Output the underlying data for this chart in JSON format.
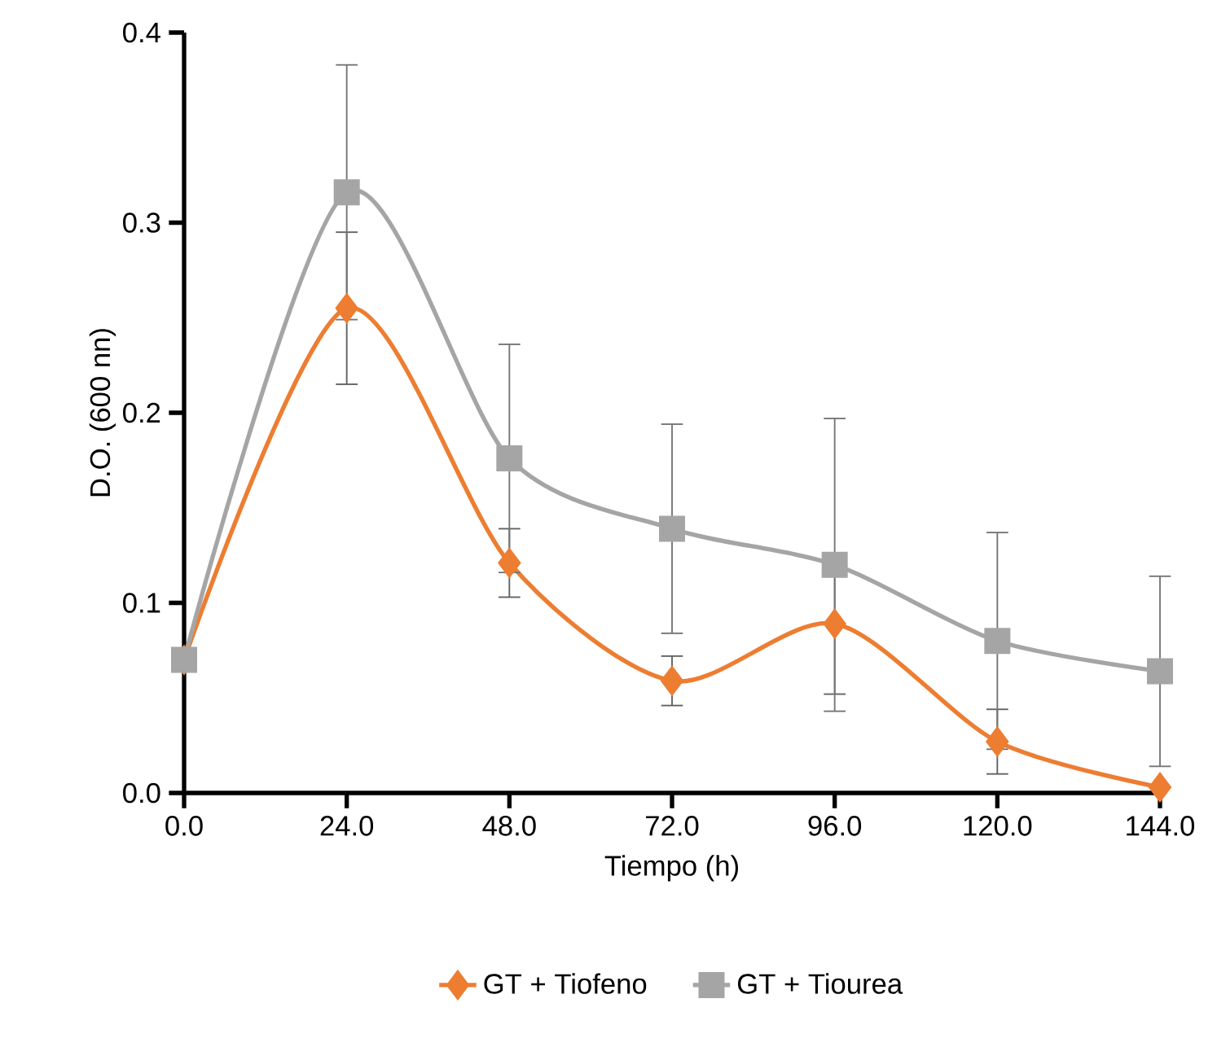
{
  "chart_data": {
    "type": "line",
    "xlabel": "Tiempo (h)",
    "ylabel": "D.O. (600 nn)",
    "x": [
      0,
      24,
      48,
      72,
      96,
      120,
      144
    ],
    "series": [
      {
        "name": "GT + Tiofeno",
        "color": "#ed7d31",
        "marker": "diamond",
        "values": [
          0.07,
          0.255,
          0.121,
          0.059,
          0.089,
          0.027,
          0.003
        ],
        "errors": [
          null,
          0.04,
          0.018,
          0.013,
          0.037,
          0.017,
          null
        ]
      },
      {
        "name": "GT + Tiourea",
        "color": "#a5a5a5",
        "marker": "square",
        "values": [
          0.07,
          0.316,
          0.176,
          0.139,
          0.12,
          0.08,
          0.064
        ],
        "errors": [
          null,
          0.067,
          0.06,
          0.055,
          0.077,
          0.057,
          0.05
        ]
      }
    ],
    "xlim": [
      0,
      144
    ],
    "ylim": [
      0,
      0.4
    ],
    "xticks": [
      {
        "value": 0,
        "label": "0.0"
      },
      {
        "value": 24,
        "label": "24.0"
      },
      {
        "value": 48,
        "label": "48.0"
      },
      {
        "value": 72,
        "label": "72.0"
      },
      {
        "value": 96,
        "label": "96.0"
      },
      {
        "value": 120,
        "label": "120.0"
      },
      {
        "value": 144,
        "label": "144.0"
      }
    ],
    "yticks": [
      {
        "value": 0,
        "label": "0.0"
      },
      {
        "value": 0.1,
        "label": "0.1"
      },
      {
        "value": 0.2,
        "label": "0.2"
      },
      {
        "value": 0.3,
        "label": "0.3"
      },
      {
        "value": 0.4,
        "label": "0.4"
      }
    ],
    "grid": false,
    "legend": "bottom",
    "line_style": "solid"
  }
}
